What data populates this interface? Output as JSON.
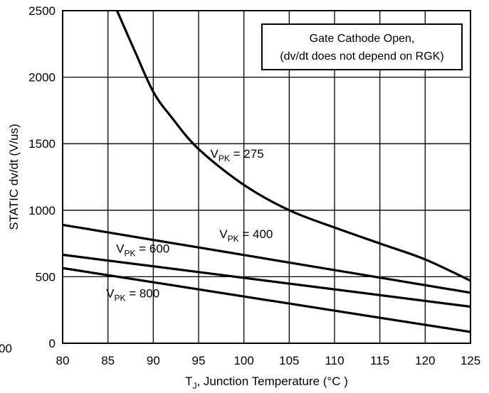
{
  "chart_data": {
    "type": "line",
    "xlabel": {
      "main": "T",
      "sub": "J",
      "rest": ", Junction Temperature (°C )"
    },
    "ylabel": "STATIC dv/dt (V/us)",
    "xlim": [
      80,
      125
    ],
    "ylim": [
      0,
      2500
    ],
    "x_ticks": [
      80,
      85,
      90,
      95,
      100,
      105,
      110,
      115,
      120,
      125
    ],
    "y_ticks": [
      0,
      500,
      1000,
      1500,
      2000,
      2500
    ],
    "grid": true,
    "clipped_tick_label": "00",
    "legend_box": {
      "line1": "Gate Cathode Open,",
      "line2": "(dv/dt does not depend on RGK)",
      "placement": "top-right"
    },
    "series": [
      {
        "label_main": "V",
        "label_sub": "PK",
        "label_rest": " = 275",
        "x": [
          86,
          88,
          90,
          92,
          95,
          100,
          105,
          110,
          115,
          120,
          125
        ],
        "y": [
          2500,
          2190,
          1890,
          1700,
          1460,
          1190,
          1000,
          870,
          750,
          630,
          470
        ]
      },
      {
        "label_main": "V",
        "label_sub": "PK",
        "label_rest": " = 400",
        "x": [
          80,
          125
        ],
        "y": [
          890,
          380
        ]
      },
      {
        "label_main": "V",
        "label_sub": "PK",
        "label_rest": " = 600",
        "x": [
          80,
          125
        ],
        "y": [
          665,
          275
        ]
      },
      {
        "label_main": "V",
        "label_sub": "PK",
        "label_rest": " = 800",
        "x": [
          80,
          125
        ],
        "y": [
          565,
          85
        ]
      }
    ]
  }
}
